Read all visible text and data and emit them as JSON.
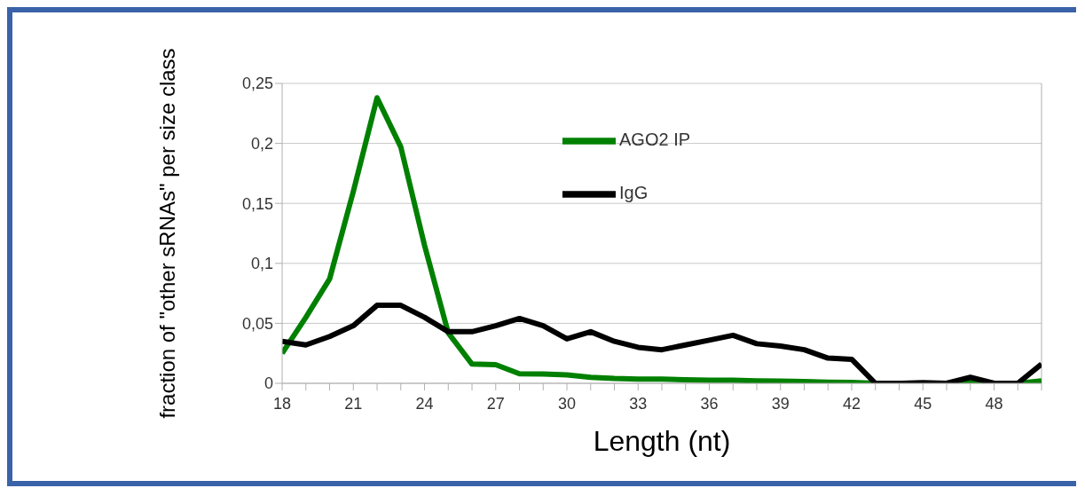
{
  "chart_data": {
    "type": "line",
    "xlabel": "Length (nt)",
    "ylabel": "fraction of \"other sRNAs\" per size class",
    "x": [
      18,
      19,
      20,
      21,
      22,
      23,
      24,
      25,
      26,
      27,
      28,
      29,
      30,
      31,
      32,
      33,
      34,
      35,
      36,
      37,
      38,
      39,
      40,
      41,
      42,
      43,
      44,
      45,
      46,
      47,
      48,
      49,
      50
    ],
    "series": [
      {
        "name": "AGO2 IP",
        "color": "#008000",
        "values": [
          0.025,
          0.055,
          0.087,
          0.16,
          0.238,
          0.197,
          0.115,
          0.042,
          0.016,
          0.0155,
          0.008,
          0.0078,
          0.007,
          0.005,
          0.004,
          0.0035,
          0.0035,
          0.003,
          0.0025,
          0.0025,
          0.002,
          0.0018,
          0.0015,
          0.001,
          0.0008,
          0,
          0,
          0,
          0,
          0.002,
          0,
          0,
          0.002
        ]
      },
      {
        "name": "IgG",
        "color": "#000000",
        "values": [
          0.035,
          0.032,
          0.039,
          0.048,
          0.065,
          0.065,
          0.055,
          0.043,
          0.043,
          0.048,
          0.054,
          0.048,
          0.037,
          0.043,
          0.035,
          0.03,
          0.028,
          0.032,
          0.036,
          0.04,
          0.033,
          0.031,
          0.028,
          0.021,
          0.02,
          0,
          0,
          0.0005,
          0,
          0.005,
          0,
          0,
          0.016
        ]
      }
    ],
    "xlim": [
      18,
      50
    ],
    "xticks": [
      18,
      {
        "value": 19,
        "label": null
      },
      {
        "value": 20,
        "label": null
      },
      21,
      {
        "value": 22,
        "label": null
      },
      {
        "value": 23,
        "label": null
      },
      24,
      {
        "value": 25,
        "label": null
      },
      {
        "value": 26,
        "label": null
      },
      27,
      {
        "value": 28,
        "label": null
      },
      {
        "value": 29,
        "label": null
      },
      30,
      {
        "value": 31,
        "label": null
      },
      {
        "value": 32,
        "label": null
      },
      33,
      {
        "value": 34,
        "label": null
      },
      {
        "value": 35,
        "label": null
      },
      36,
      {
        "value": 37,
        "label": null
      },
      {
        "value": 38,
        "label": null
      },
      39,
      {
        "value": 40,
        "label": null
      },
      {
        "value": 41,
        "label": null
      },
      42,
      {
        "value": 43,
        "label": null
      },
      {
        "value": 44,
        "label": null
      },
      45,
      {
        "value": 46,
        "label": null
      },
      {
        "value": 47,
        "label": null
      },
      48,
      {
        "value": 49,
        "label": null
      },
      {
        "value": 50,
        "label": null
      }
    ],
    "ylim": [
      0,
      0.25
    ],
    "yticks": [
      0,
      {
        "value": 0.05,
        "label": "0,05"
      },
      {
        "value": 0.1,
        "label": "0,1"
      },
      {
        "value": 0.15,
        "label": "0,15"
      },
      {
        "value": 0.2,
        "label": "0,2"
      },
      {
        "value": 0.25,
        "label": "0,25"
      }
    ],
    "grid": "y",
    "legend": "top",
    "marker": "none",
    "line_style": "solid"
  }
}
